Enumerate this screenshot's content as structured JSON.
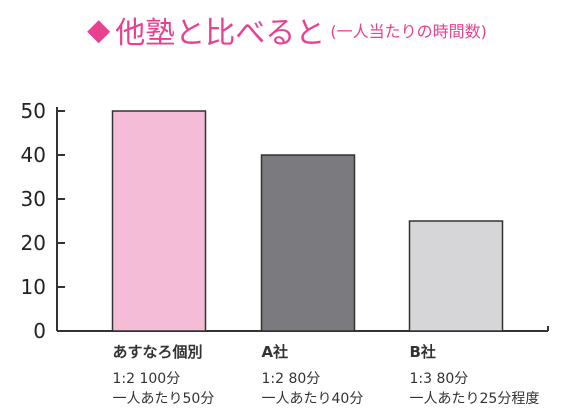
{
  "title": {
    "mark": "◆",
    "main": "他塾と比べると",
    "sub": "(一人当たりの時間数)"
  },
  "chart_data": {
    "type": "bar",
    "title": "他塾と比べると(一人当たりの時間数)",
    "xlabel": "",
    "ylabel": "",
    "ylim": [
      0,
      50
    ],
    "yticks": [
      "50",
      "40",
      "30",
      "20",
      "10",
      "0"
    ],
    "categories": [
      "あすなろ個別",
      "A社",
      "B社"
    ],
    "values": [
      50,
      40,
      25
    ],
    "bar_colors": [
      "#f4bcd6",
      "#7b7b7f",
      "#d6d6d8"
    ],
    "annotations": [
      [
        "1:2 100分",
        "一人あたり50分"
      ],
      [
        "1:2 80分",
        "一人あたり40分"
      ],
      [
        "1:3 80分",
        "一人あたり25分程度"
      ]
    ]
  }
}
